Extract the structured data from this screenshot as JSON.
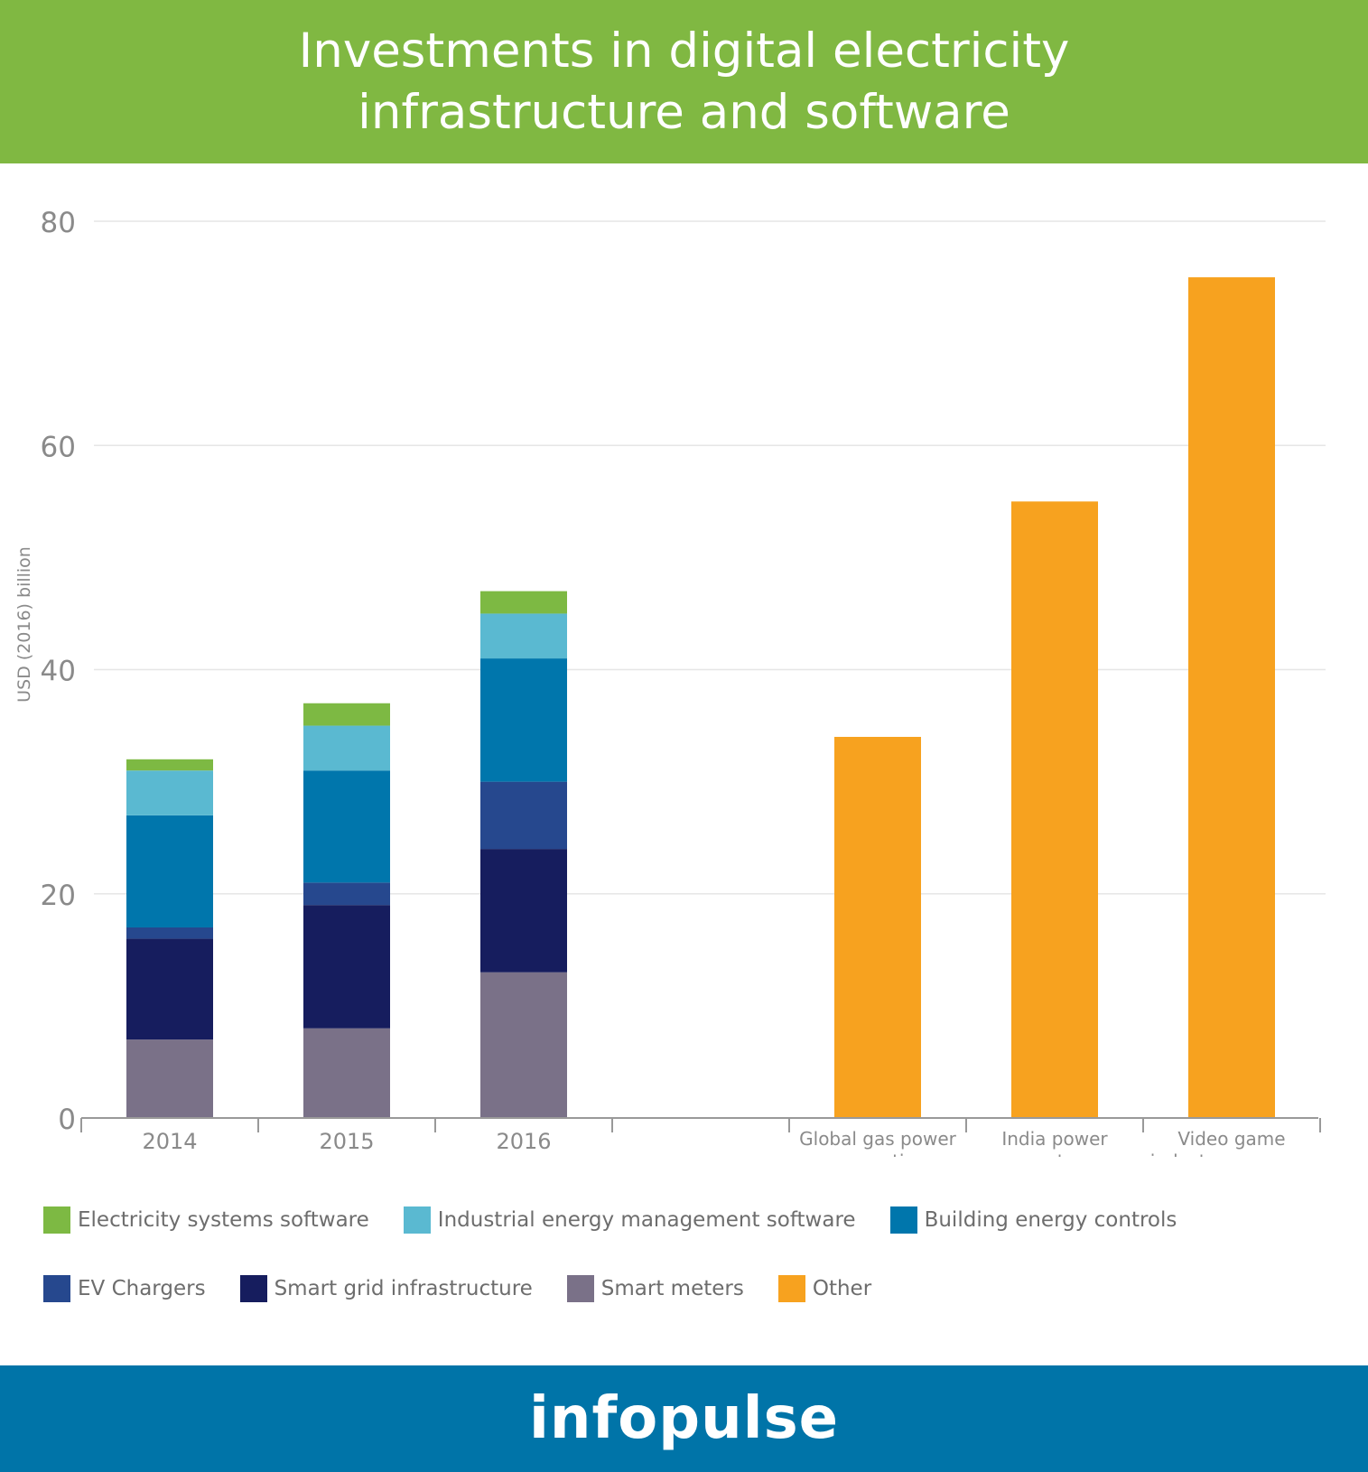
{
  "header": {
    "title": "Investments in digital electricity infrastructure and software"
  },
  "footer": {
    "brand": "infopulse"
  },
  "colors": {
    "header_bg": "#80b842",
    "footer_bg": "#0074a8",
    "grid": "#e6e6e6",
    "axis": "#999999"
  },
  "chart_data": {
    "type": "bar",
    "stacked": true,
    "title": "Investments in digital electricity infrastructure and software",
    "ylabel": "USD (2016) billion",
    "xlabel": "",
    "ylim": [
      0,
      80
    ],
    "yticks": [
      0,
      20,
      40,
      60,
      80
    ],
    "grid": true,
    "legend_position": "bottom",
    "categories": [
      "2014",
      "2015",
      "2016",
      "",
      "Global gas power generation",
      "India power sector",
      "Video game industry revenues"
    ],
    "category_lines": [
      [
        "2014"
      ],
      [
        "2015"
      ],
      [
        "2016"
      ],
      [
        ""
      ],
      [
        "Global gas power",
        "generation"
      ],
      [
        "India power",
        "sector"
      ],
      [
        "Video game",
        "industry revenues"
      ]
    ],
    "series": [
      {
        "name": "Smart meters",
        "color": "#7a7188",
        "values": [
          7,
          8,
          13,
          0,
          0,
          0,
          0
        ]
      },
      {
        "name": "Smart grid infrastructure",
        "color": "#161d5e",
        "values": [
          9,
          11,
          11,
          0,
          0,
          0,
          0
        ]
      },
      {
        "name": "EV Chargers",
        "color": "#26488e",
        "values": [
          1,
          2,
          6,
          0,
          0,
          0,
          0
        ]
      },
      {
        "name": "Building energy controls",
        "color": "#0076ac",
        "values": [
          10,
          10,
          11,
          0,
          0,
          0,
          0
        ]
      },
      {
        "name": "Industrial energy management software",
        "color": "#5ab9d1",
        "values": [
          4,
          4,
          4,
          0,
          0,
          0,
          0
        ]
      },
      {
        "name": "Electricity systems software",
        "color": "#7db943",
        "values": [
          1,
          2,
          2,
          0,
          0,
          0,
          0
        ]
      },
      {
        "name": "Other",
        "color": "#f7a21f",
        "values": [
          0,
          0,
          0,
          0,
          34,
          55,
          75
        ]
      }
    ]
  },
  "legend": {
    "rows": [
      [
        {
          "label": "Electricity systems software",
          "color": "#7db943"
        },
        {
          "label": "Industrial energy management software",
          "color": "#5ab9d1"
        },
        {
          "label": "Building energy controls",
          "color": "#0076ac"
        }
      ],
      [
        {
          "label": "EV Chargers",
          "color": "#26488e"
        },
        {
          "label": "Smart grid infrastructure",
          "color": "#161d5e"
        },
        {
          "label": "Smart meters",
          "color": "#7a7188"
        },
        {
          "label": "Other",
          "color": "#f7a21f"
        }
      ]
    ]
  }
}
